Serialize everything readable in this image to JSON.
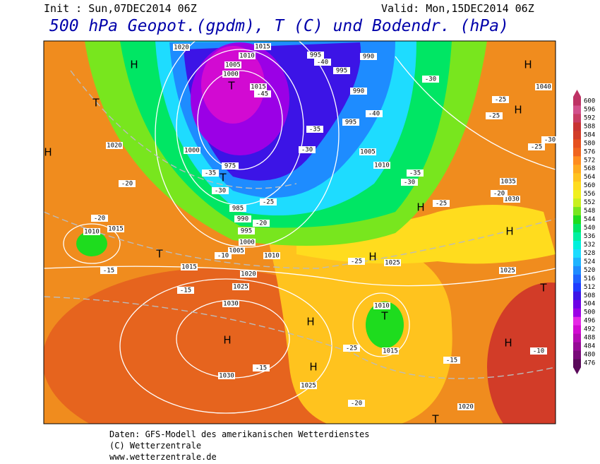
{
  "header": {
    "init": "Init : Sun,07DEC2014 06Z",
    "valid": "Valid: Mon,15DEC2014 06Z",
    "title": "500 hPa Geopot.(gpdm), T (C) und Bodendr. (hPa)"
  },
  "colorbar": {
    "levels": [
      476,
      480,
      484,
      488,
      492,
      496,
      500,
      504,
      508,
      512,
      516,
      520,
      524,
      528,
      532,
      536,
      540,
      544,
      548,
      552,
      556,
      560,
      564,
      568,
      572,
      576,
      580,
      584,
      588,
      592,
      596,
      600
    ],
    "colors": [
      "#5a0a5a",
      "#780a78",
      "#960a96",
      "#b40ab4",
      "#d20ad2",
      "#e628e6",
      "#9b00e6",
      "#6e00e6",
      "#3c14e6",
      "#1e3cff",
      "#1e64ff",
      "#1e8cff",
      "#1eb4ff",
      "#1edcff",
      "#00f0dc",
      "#00f0a0",
      "#00e664",
      "#1edc1e",
      "#78e61e",
      "#c8f01e",
      "#f0f01e",
      "#ffdc1e",
      "#ffc31e",
      "#ffaa1e",
      "#ff8c1e",
      "#f0641e",
      "#e6501e",
      "#d23c28",
      "#c83232",
      "#c83c64",
      "#d2508c",
      "#be3264"
    ]
  },
  "map": {
    "systems": [
      "H",
      "H",
      "H",
      "H",
      "H",
      "H",
      "H",
      "H",
      "H",
      "H",
      "H",
      "T",
      "T",
      "T",
      "T",
      "T",
      "T",
      "T"
    ],
    "pressure_labels": [
      "1020",
      "1015",
      "1010",
      "1005",
      "1000",
      "1015",
      "995",
      "990",
      "995",
      "990",
      "995",
      "1020",
      "1000",
      "975",
      "985",
      "990",
      "995",
      "1000",
      "1005",
      "1010",
      "1015",
      "1010",
      "1015",
      "1020",
      "1025",
      "1030",
      "1030",
      "1025",
      "1025",
      "1020",
      "1015",
      "1010",
      "1005",
      "1010",
      "1035",
      "1030",
      "1025",
      "1040"
    ],
    "temperature_labels": [
      "-40",
      "-45",
      "-35",
      "-30",
      "-35",
      "-30",
      "-25",
      "-20",
      "-20",
      "-20",
      "-15",
      "-15",
      "-15",
      "-25",
      "-20",
      "-15",
      "-10",
      "-25",
      "-25",
      "-30",
      "-35",
      "-30",
      "-25",
      "-20",
      "-40",
      "-25",
      "-10",
      "-30",
      "-25"
    ]
  },
  "footer": {
    "source": "Daten: GFS-Modell des amerikanischen Wetterdienstes",
    "copyright": "(C) Wetterzentrale",
    "url": "www.wetterzentrale.de"
  }
}
